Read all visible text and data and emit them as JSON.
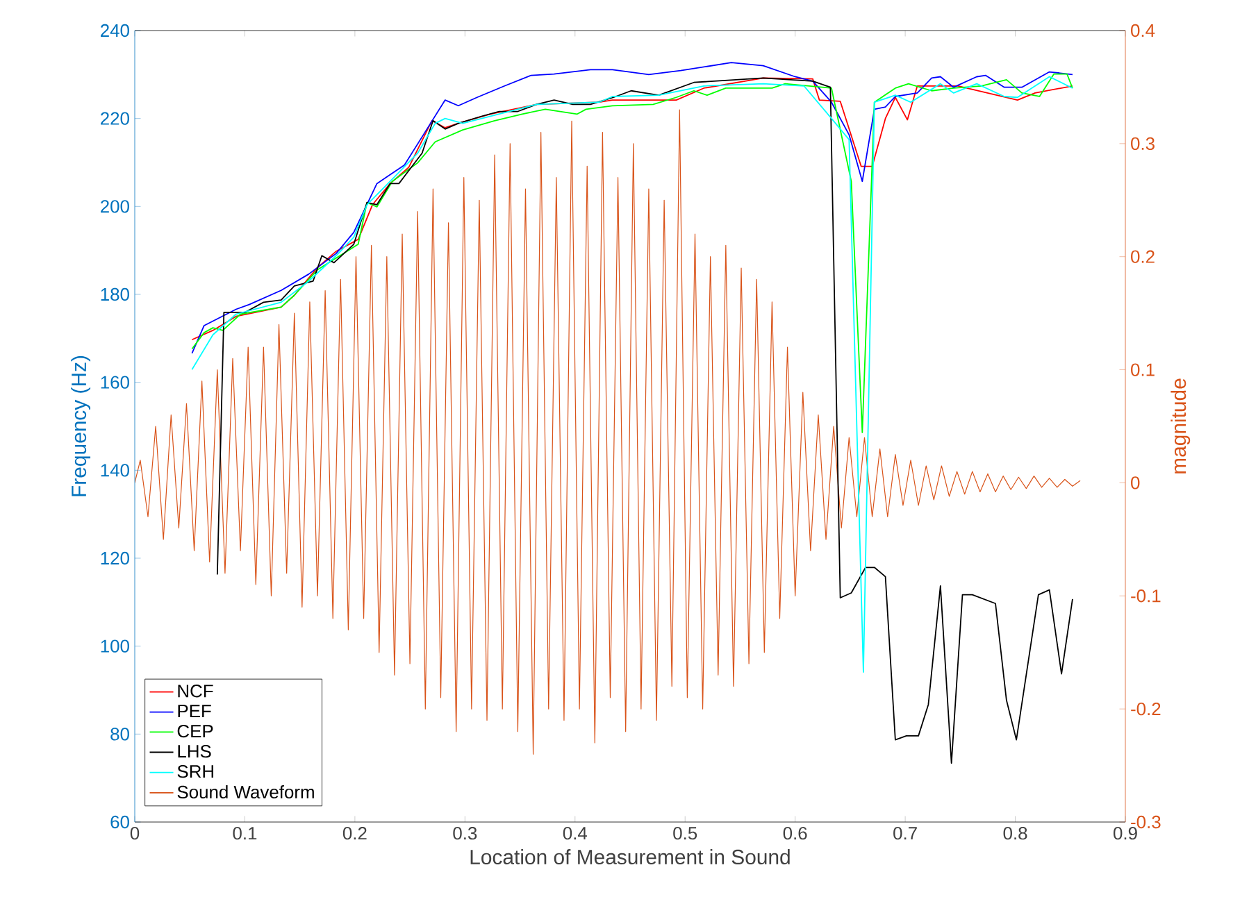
{
  "chart_data": {
    "type": "line",
    "xlabel": "Location of Measurement in Sound",
    "ylabel": "Frequency (Hz)",
    "y2label": "magnitude",
    "xlim": [
      0,
      0.9
    ],
    "xticks": [
      0,
      0.1,
      0.2,
      0.3,
      0.4,
      0.5,
      0.6,
      0.7,
      0.8,
      0.9
    ],
    "ylim": [
      60,
      240
    ],
    "yticks": [
      60,
      80,
      100,
      120,
      140,
      160,
      180,
      200,
      220,
      240
    ],
    "y2lim": [
      -0.3,
      0.4
    ],
    "y2ticks": [
      -0.3,
      -0.2,
      -0.1,
      0,
      0.1,
      0.2,
      0.3,
      0.4
    ],
    "legend": "bottom left",
    "marker": "none",
    "line_style": "solid",
    "series": [
      {
        "name": "NCF",
        "color": "#ff0000",
        "x": [
          0.052,
          0.071,
          0.092,
          0.133,
          0.145,
          0.166,
          0.183,
          0.203,
          0.216,
          0.232,
          0.249,
          0.27,
          0.282,
          0.294,
          0.323,
          0.365,
          0.422,
          0.434,
          0.492,
          0.517,
          0.571,
          0.616,
          0.622,
          0.641,
          0.66,
          0.67,
          0.682,
          0.691,
          0.702,
          0.711,
          0.748,
          0.802,
          0.818,
          0.852
        ],
        "values": [
          169.7,
          171.8,
          175.0,
          177.1,
          179.8,
          186.1,
          189.8,
          192.5,
          200.4,
          205.2,
          208.9,
          219.5,
          217.9,
          218.9,
          221.0,
          223.2,
          223.7,
          224.2,
          224.2,
          226.9,
          229.2,
          229.0,
          224.2,
          223.9,
          209.1,
          209.1,
          220.0,
          224.8,
          219.7,
          227.4,
          227.4,
          224.2,
          225.8,
          227.4
        ]
      },
      {
        "name": "PEF",
        "color": "#0000ff",
        "x": [
          0.052,
          0.063,
          0.092,
          0.104,
          0.133,
          0.158,
          0.183,
          0.199,
          0.22,
          0.245,
          0.265,
          0.282,
          0.294,
          0.311,
          0.336,
          0.36,
          0.381,
          0.414,
          0.434,
          0.467,
          0.496,
          0.542,
          0.571,
          0.6,
          0.616,
          0.633,
          0.649,
          0.661,
          0.672,
          0.682,
          0.691,
          0.711,
          0.724,
          0.732,
          0.744,
          0.765,
          0.773,
          0.79,
          0.806,
          0.831,
          0.852
        ],
        "values": [
          166.6,
          172.9,
          176.6,
          177.7,
          180.9,
          184.6,
          189.3,
          194.1,
          205.2,
          209.4,
          217.4,
          224.2,
          222.9,
          224.8,
          227.4,
          229.8,
          230.1,
          231.1,
          231.1,
          230.0,
          230.9,
          232.7,
          232.0,
          229.5,
          228.5,
          223.7,
          216.3,
          205.7,
          222.1,
          222.6,
          225.0,
          225.8,
          229.2,
          229.5,
          227.1,
          229.5,
          229.8,
          227.1,
          227.1,
          230.6,
          230.0
        ]
      },
      {
        "name": "CEP",
        "color": "#00ff00",
        "x": [
          0.052,
          0.063,
          0.071,
          0.08,
          0.096,
          0.133,
          0.145,
          0.166,
          0.203,
          0.211,
          0.22,
          0.234,
          0.257,
          0.273,
          0.298,
          0.327,
          0.352,
          0.373,
          0.402,
          0.41,
          0.434,
          0.471,
          0.492,
          0.508,
          0.52,
          0.537,
          0.579,
          0.591,
          0.633,
          0.651,
          0.661,
          0.672,
          0.691,
          0.703,
          0.724,
          0.744,
          0.769,
          0.792,
          0.806,
          0.822,
          0.835,
          0.847,
          0.852
        ],
        "values": [
          167.6,
          171.3,
          172.4,
          171.8,
          175.5,
          177.1,
          179.8,
          185.6,
          191.4,
          200.9,
          199.9,
          205.7,
          209.9,
          214.7,
          217.4,
          219.5,
          221.0,
          222.1,
          221.0,
          222.1,
          222.9,
          223.2,
          224.8,
          226.3,
          225.3,
          226.9,
          226.9,
          227.9,
          226.9,
          205.7,
          148.6,
          223.7,
          226.9,
          227.9,
          226.3,
          226.9,
          227.4,
          228.8,
          225.8,
          225.0,
          230.1,
          230.1,
          226.9
        ]
      },
      {
        "name": "LHS",
        "color": "#000000",
        "x": [
          0.075,
          0.081,
          0.1,
          0.117,
          0.133,
          0.145,
          0.162,
          0.17,
          0.181,
          0.199,
          0.211,
          0.22,
          0.232,
          0.24,
          0.261,
          0.271,
          0.282,
          0.294,
          0.315,
          0.331,
          0.348,
          0.365,
          0.381,
          0.398,
          0.414,
          0.435,
          0.451,
          0.476,
          0.508,
          0.571,
          0.616,
          0.632,
          0.641,
          0.651,
          0.664,
          0.672,
          0.682,
          0.691,
          0.701,
          0.712,
          0.721,
          0.732,
          0.742,
          0.752,
          0.761,
          0.782,
          0.792,
          0.801,
          0.821,
          0.831,
          0.842,
          0.852
        ],
        "values": [
          116.3,
          175.9,
          175.9,
          178.2,
          178.7,
          181.9,
          183.0,
          188.8,
          187.2,
          191.4,
          200.9,
          200.4,
          205.2,
          205.2,
          212.1,
          219.5,
          217.6,
          218.9,
          220.5,
          221.6,
          221.6,
          223.2,
          224.2,
          223.2,
          223.2,
          224.8,
          226.3,
          225.3,
          228.2,
          229.2,
          228.5,
          227.1,
          111.0,
          112.1,
          117.9,
          117.9,
          115.8,
          78.7,
          79.6,
          79.6,
          86.7,
          113.7,
          73.4,
          111.7,
          111.7,
          109.7,
          87.7,
          78.7,
          111.7,
          112.8,
          93.7,
          110.7
        ]
      },
      {
        "name": "SRH",
        "color": "#00ffff",
        "x": [
          0.052,
          0.071,
          0.092,
          0.133,
          0.158,
          0.183,
          0.199,
          0.211,
          0.232,
          0.257,
          0.273,
          0.282,
          0.298,
          0.34,
          0.365,
          0.422,
          0.434,
          0.476,
          0.517,
          0.571,
          0.608,
          0.633,
          0.649,
          0.662,
          0.672,
          0.691,
          0.705,
          0.732,
          0.744,
          0.765,
          0.79,
          0.802,
          0.831,
          0.852
        ],
        "values": [
          162.9,
          170.8,
          175.5,
          178.2,
          183.0,
          188.8,
          193.0,
          200.4,
          205.7,
          212.1,
          218.9,
          220.0,
          218.9,
          221.6,
          223.2,
          223.7,
          225.0,
          225.3,
          227.4,
          227.9,
          227.4,
          220.0,
          215.2,
          94.1,
          223.7,
          225.3,
          223.7,
          227.9,
          225.8,
          227.9,
          225.0,
          224.8,
          229.5,
          226.9
        ]
      },
      {
        "name": "Sound Waveform",
        "color": "#d95319",
        "axis": "y2",
        "x": [
          0,
          0.005,
          0.012,
          0.019,
          0.026,
          0.033,
          0.04,
          0.047,
          0.054,
          0.061,
          0.068,
          0.075,
          0.082,
          0.089,
          0.096,
          0.103,
          0.11,
          0.117,
          0.124,
          0.131,
          0.138,
          0.145,
          0.152,
          0.159,
          0.166,
          0.173,
          0.18,
          0.187,
          0.194,
          0.201,
          0.208,
          0.215,
          0.222,
          0.229,
          0.236,
          0.243,
          0.25,
          0.257,
          0.264,
          0.271,
          0.278,
          0.285,
          0.292,
          0.299,
          0.306,
          0.313,
          0.32,
          0.327,
          0.334,
          0.341,
          0.348,
          0.355,
          0.362,
          0.369,
          0.376,
          0.383,
          0.39,
          0.397,
          0.404,
          0.411,
          0.418,
          0.425,
          0.432,
          0.439,
          0.446,
          0.453,
          0.46,
          0.467,
          0.474,
          0.481,
          0.488,
          0.495,
          0.502,
          0.509,
          0.516,
          0.523,
          0.53,
          0.537,
          0.544,
          0.551,
          0.558,
          0.565,
          0.572,
          0.579,
          0.586,
          0.593,
          0.6,
          0.607,
          0.614,
          0.621,
          0.628,
          0.635,
          0.642,
          0.649,
          0.656,
          0.663,
          0.67,
          0.677,
          0.684,
          0.691,
          0.698,
          0.705,
          0.712,
          0.719,
          0.726,
          0.733,
          0.74,
          0.747,
          0.754,
          0.761,
          0.768,
          0.775,
          0.782,
          0.789,
          0.796,
          0.803,
          0.81,
          0.817,
          0.824,
          0.831,
          0.838,
          0.845,
          0.852,
          0.859
        ],
        "values": [
          0,
          0.02,
          -0.03,
          0.05,
          -0.05,
          0.06,
          -0.04,
          0.07,
          -0.06,
          0.09,
          -0.07,
          0.1,
          -0.08,
          0.11,
          -0.06,
          0.12,
          -0.09,
          0.12,
          -0.1,
          0.14,
          -0.08,
          0.15,
          -0.11,
          0.16,
          -0.1,
          0.17,
          -0.12,
          0.18,
          -0.13,
          0.2,
          -0.12,
          0.21,
          -0.15,
          0.2,
          -0.17,
          0.22,
          -0.16,
          0.24,
          -0.2,
          0.26,
          -0.19,
          0.23,
          -0.22,
          0.27,
          -0.2,
          0.25,
          -0.21,
          0.29,
          -0.2,
          0.3,
          -0.22,
          0.26,
          -0.24,
          0.31,
          -0.2,
          0.27,
          -0.21,
          0.32,
          -0.2,
          0.28,
          -0.23,
          0.31,
          -0.19,
          0.27,
          -0.22,
          0.3,
          -0.2,
          0.26,
          -0.21,
          0.25,
          -0.18,
          0.33,
          -0.19,
          0.22,
          -0.2,
          0.2,
          -0.17,
          0.21,
          -0.18,
          0.19,
          -0.16,
          0.18,
          -0.15,
          0.16,
          -0.12,
          0.12,
          -0.1,
          0.08,
          -0.06,
          0.06,
          -0.05,
          0.05,
          -0.04,
          0.04,
          -0.03,
          0.04,
          -0.03,
          0.03,
          -0.03,
          0.025,
          -0.02,
          0.02,
          -0.02,
          0.015,
          -0.015,
          0.015,
          -0.012,
          0.01,
          -0.01,
          0.01,
          -0.008,
          0.008,
          -0.008,
          0.006,
          -0.006,
          0.005,
          -0.005,
          0.006,
          -0.004,
          0.004,
          -0.004,
          0.003,
          -0.003,
          0.002
        ]
      }
    ]
  }
}
